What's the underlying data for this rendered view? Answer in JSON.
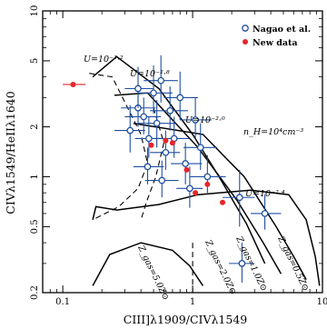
{
  "chart_data": {
    "type": "scatter",
    "xlabel": "CIII]λ1909/CIVλ1549",
    "ylabel": "CIVλ1549/HeIIλ1640",
    "xscale": "log",
    "yscale": "log",
    "xlim": [
      0.07,
      10
    ],
    "ylim": [
      0.2,
      10
    ],
    "x_ticks": [
      {
        "value": 0.1,
        "label": "0.1"
      },
      {
        "value": 1,
        "label": "1"
      },
      {
        "value": 10,
        "label": "10"
      }
    ],
    "y_ticks": [
      {
        "value": 0.2,
        "label": "0.2"
      },
      {
        "value": 0.5,
        "label": "0.5"
      },
      {
        "value": 1,
        "label": "1"
      },
      {
        "value": 2,
        "label": "2"
      },
      {
        "value": 5,
        "label": "5"
      },
      {
        "value": 10,
        "label": "10"
      }
    ],
    "legend_position": "top-right",
    "legend": [
      {
        "label": "Nagao et al.",
        "marker": "open-circle",
        "color": "#1f4fa0"
      },
      {
        "label": "New data",
        "marker": "filled-circle",
        "color": "#e8242a"
      }
    ],
    "annotations": {
      "u_labels": [
        "U=10⁻¹·²",
        "U=10⁻¹·⁸",
        "U=10⁻²·⁰",
        "U=10⁻²·⁴"
      ],
      "density_label": "n_H=10⁴cm⁻³",
      "z_labels": [
        "Z_gas=5.0Z⊙",
        "Z_gas=2.0Z⊙",
        "Z_gas=1.0Z⊙",
        "Z_gas=0.5Z⊙"
      ]
    },
    "series": [
      {
        "name": "Nagao et al.",
        "color": "#1f4fa0",
        "points": [
          {
            "x": 0.33,
            "y": 1.9,
            "xerr": [
              0.08,
              0.1
            ],
            "yerr": [
              0.5,
              0.8
            ]
          },
          {
            "x": 0.38,
            "y": 2.6,
            "xerr": [
              0.1,
              0.14
            ],
            "yerr": [
              0.6,
              0.9
            ]
          },
          {
            "x": 0.42,
            "y": 2.3,
            "xerr": [
              0.12,
              0.15
            ],
            "yerr": [
              0.5,
              0.7
            ]
          },
          {
            "x": 0.46,
            "y": 1.7,
            "xerr": [
              0.1,
              0.12
            ],
            "yerr": [
              0.4,
              0.6
            ]
          },
          {
            "x": 0.5,
            "y": 3.2,
            "xerr": [
              0.12,
              0.2
            ],
            "yerr": [
              0.8,
              1.5
            ]
          },
          {
            "x": 0.53,
            "y": 2.1,
            "xerr": [
              0.15,
              0.2
            ],
            "yerr": [
              0.6,
              0.8
            ]
          },
          {
            "x": 0.57,
            "y": 3.8,
            "xerr": [
              0.15,
              0.2
            ],
            "yerr": [
              1.0,
              1.6
            ]
          },
          {
            "x": 0.62,
            "y": 1.4,
            "xerr": [
              0.15,
              0.18
            ],
            "yerr": [
              0.3,
              0.5
            ]
          },
          {
            "x": 0.67,
            "y": 2.5,
            "xerr": [
              0.2,
              0.25
            ],
            "yerr": [
              0.6,
              1.0
            ]
          },
          {
            "x": 0.72,
            "y": 1.7,
            "xerr": [
              0.18,
              0.22
            ],
            "yerr": [
              0.4,
              0.6
            ]
          },
          {
            "x": 0.8,
            "y": 3.0,
            "xerr": [
              0.2,
              0.3
            ],
            "yerr": [
              0.8,
              1.3
            ]
          },
          {
            "x": 0.88,
            "y": 1.2,
            "xerr": [
              0.2,
              0.3
            ],
            "yerr": [
              0.3,
              0.4
            ]
          },
          {
            "x": 1.05,
            "y": 2.2,
            "xerr": [
              0.25,
              0.35
            ],
            "yerr": [
              0.5,
              0.8
            ]
          },
          {
            "x": 1.15,
            "y": 1.5,
            "xerr": [
              0.3,
              0.4
            ],
            "yerr": [
              0.4,
              0.6
            ]
          },
          {
            "x": 1.3,
            "y": 1.0,
            "xerr": [
              0.35,
              0.5
            ],
            "yerr": [
              0.2,
              0.35
            ]
          },
          {
            "x": 0.58,
            "y": 0.95,
            "xerr": [
              0.15,
              0.2
            ],
            "yerr": [
              0.2,
              0.3
            ]
          },
          {
            "x": 0.45,
            "y": 1.15,
            "xerr": [
              0.1,
              0.15
            ],
            "yerr": [
              0.25,
              0.35
            ]
          },
          {
            "x": 0.38,
            "y": 3.4,
            "xerr": [
              0.08,
              0.12
            ],
            "yerr": [
              0.8,
              1.2
            ]
          },
          {
            "x": 0.95,
            "y": 0.85,
            "xerr": [
              0.2,
              0.25
            ],
            "yerr": [
              0.2,
              0.3
            ]
          },
          {
            "x": 2.3,
            "y": 0.75,
            "xerr": [
              0.6,
              0.7
            ],
            "yerr": [
              0.25,
              0.35
            ]
          },
          {
            "x": 2.4,
            "y": 0.3,
            "xerr": [
              0.5,
              0.6
            ],
            "yerr": [
              0.07,
              0.1
            ]
          },
          {
            "x": 3.6,
            "y": 0.6,
            "xerr": [
              0.8,
              1.2
            ],
            "yerr": [
              0.12,
              0.18
            ]
          }
        ]
      },
      {
        "name": "New data",
        "color": "#e8242a",
        "points": [
          {
            "x": 0.12,
            "y": 3.6,
            "xerr": [
              0.02,
              0.03
            ],
            "yerr": [
              0,
              0
            ]
          },
          {
            "x": 0.48,
            "y": 1.55,
            "xerr": [
              0,
              0
            ],
            "yerr": [
              0,
              0
            ]
          },
          {
            "x": 0.62,
            "y": 1.65,
            "xerr": [
              0,
              0
            ],
            "yerr": [
              0,
              0
            ]
          },
          {
            "x": 0.7,
            "y": 1.6,
            "xerr": [
              0,
              0
            ],
            "yerr": [
              0,
              0
            ]
          },
          {
            "x": 0.9,
            "y": 1.1,
            "xerr": [
              0,
              0
            ],
            "yerr": [
              0,
              0
            ]
          },
          {
            "x": 1.05,
            "y": 0.8,
            "xerr": [
              0,
              0
            ],
            "yerr": [
              0,
              0
            ]
          },
          {
            "x": 1.3,
            "y": 0.9,
            "xerr": [
              0,
              0
            ],
            "yerr": [
              0,
              0
            ]
          },
          {
            "x": 1.7,
            "y": 0.7,
            "xerr": [
              0,
              0
            ],
            "yerr": [
              0,
              0
            ]
          }
        ]
      }
    ],
    "grid_curves": [
      {
        "name": "U=10^-1.2",
        "style": "solid",
        "points": [
          [
            0.17,
            4.0
          ],
          [
            0.26,
            5.3
          ],
          [
            0.55,
            3.4
          ],
          [
            1.0,
            1.8
          ],
          [
            1.6,
            1.0
          ],
          [
            2.6,
            0.52
          ],
          [
            3.6,
            0.3
          ]
        ]
      },
      {
        "name": "U=10^-1.8",
        "style": "solid",
        "points": [
          [
            0.25,
            3.1
          ],
          [
            0.45,
            3.2
          ],
          [
            1.1,
            1.5
          ],
          [
            2.2,
            0.72
          ],
          [
            3.5,
            0.4
          ],
          [
            4.8,
            0.26
          ]
        ]
      },
      {
        "name": "U=10^-2.0",
        "style": "solid",
        "points": [
          [
            0.35,
            2.1
          ],
          [
            1.2,
            1.8
          ],
          [
            2.5,
            1.0
          ],
          [
            4.4,
            0.5
          ],
          [
            6.0,
            0.33
          ],
          [
            7.5,
            0.24
          ]
        ]
      },
      {
        "name": "U=10^-2.4",
        "style": "solid",
        "points": [
          [
            0.17,
            0.55
          ],
          [
            0.18,
            0.66
          ],
          [
            0.26,
            0.63
          ],
          [
            0.55,
            0.68
          ],
          [
            1.1,
            0.78
          ],
          [
            2.8,
            0.83
          ],
          [
            5.5,
            0.78
          ],
          [
            7.5,
            0.55
          ],
          [
            8.8,
            0.33
          ],
          [
            9.5,
            0.22
          ]
        ]
      },
      {
        "name": "Z_gas=5.0Z⊙",
        "style": "solid",
        "points": [
          [
            0.17,
            0.22
          ],
          [
            0.23,
            0.34
          ],
          [
            0.4,
            0.4
          ],
          [
            0.7,
            0.36
          ],
          [
            0.95,
            0.29
          ],
          [
            1.2,
            0.22
          ]
        ]
      },
      {
        "name": "Z-track-dash-1",
        "style": "dashed",
        "points": [
          [
            0.16,
            4.2
          ],
          [
            0.24,
            4.0
          ],
          [
            0.4,
            1.8
          ],
          [
            0.45,
            1.2
          ],
          [
            0.38,
            0.85
          ],
          [
            0.27,
            0.66
          ],
          [
            0.17,
            0.55
          ]
        ]
      },
      {
        "name": "Z-track-dash-2",
        "style": "dashed",
        "points": [
          [
            0.5,
            2.6
          ],
          [
            0.6,
            1.6
          ],
          [
            0.52,
            1.0
          ],
          [
            0.44,
            0.7
          ],
          [
            0.4,
            0.55
          ]
        ]
      },
      {
        "name": "Z-track-dash-3",
        "style": "dashed",
        "points": [
          [
            1.0,
            0.4
          ],
          [
            1.0,
            0.2
          ]
        ]
      }
    ]
  }
}
